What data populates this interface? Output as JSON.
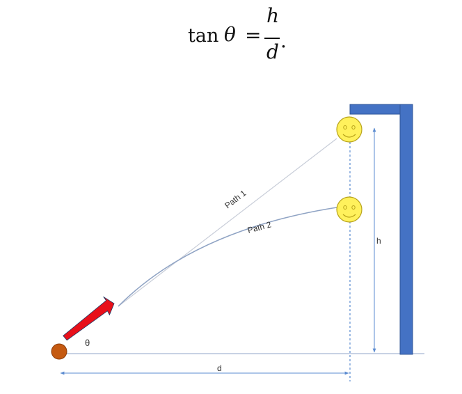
{
  "equation": {
    "function": "tan",
    "variable": "θ",
    "equals": "=",
    "numerator": "h",
    "denominator": "d",
    "period": "."
  },
  "labels": {
    "path1": "Path 1",
    "path2": "Path 2",
    "theta": "θ",
    "height": "h",
    "distance": "d"
  },
  "colors": {
    "wall": "#4472C4",
    "launcher_ball": "#C55A11",
    "arrow": "#E8101A",
    "arrow_outline": "#1F3864",
    "face_fill": "#FFF15C",
    "face_outline": "#B7A21A",
    "path1_line": "#C8CDD8",
    "path2_line": "#8FA3C4",
    "dimension_line": "#5B8BD0",
    "ground_line": "#A6B7D3"
  }
}
